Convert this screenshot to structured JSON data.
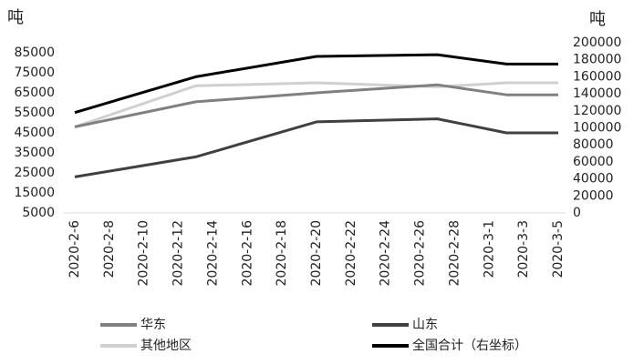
{
  "chart_data": {
    "type": "line",
    "y_unit": "吨",
    "y2_unit": "吨",
    "x": [
      "2020-2-6",
      "2020-2-13",
      "2020-2-20",
      "2020-2-27",
      "2020-3-2",
      "2020-3-5"
    ],
    "xlim": [
      "2020-2-6",
      "2020-3-5"
    ],
    "xticks": [
      "2020-2-6",
      "2020-2-8",
      "2020-2-10",
      "2020-2-12",
      "2020-2-14",
      "2020-2-16",
      "2020-2-18",
      "2020-2-20",
      "2020-2-22",
      "2020-2-24",
      "2020-2-26",
      "2020-2-28",
      "2020-3-1",
      "2020-3-3",
      "2020-3-5"
    ],
    "ylim": [
      5000,
      90000
    ],
    "yticks": [
      5000,
      15000,
      25000,
      35000,
      45000,
      55000,
      65000,
      75000,
      85000
    ],
    "y2lim": [
      0,
      200000
    ],
    "y2ticks": [
      0,
      20000,
      40000,
      60000,
      80000,
      100000,
      120000,
      140000,
      160000,
      180000,
      200000
    ],
    "series": [
      {
        "name": "华东",
        "color": "#808080",
        "values": [
          48000,
          60500,
          65000,
          69000,
          64000,
          64000
        ]
      },
      {
        "name": "山东",
        "color": "#404040",
        "values": [
          23000,
          33000,
          50500,
          52000,
          45000,
          45000
        ]
      },
      {
        "name": "其他地区",
        "color": "#d0d0d0",
        "values": [
          48000,
          68500,
          70000,
          68000,
          70000,
          70000
        ]
      },
      {
        "name": "全国合计（右坐标）",
        "color": "#000000",
        "axis": "y2",
        "values": [
          118000,
          160000,
          184000,
          186000,
          175000,
          175000
        ]
      }
    ]
  }
}
